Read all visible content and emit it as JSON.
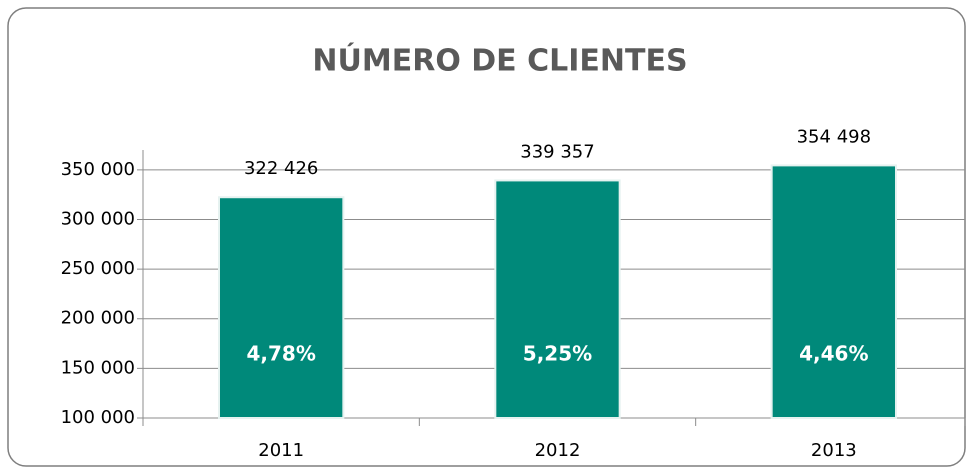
{
  "chart_data": {
    "type": "bar",
    "title": "NÚMERO DE CLIENTES",
    "categories": [
      "2011",
      "2012",
      "2013"
    ],
    "values": [
      322426,
      339357,
      354498
    ],
    "value_labels": [
      "322 426",
      "339 357",
      "354 498"
    ],
    "annotations": [
      "4,78%",
      "5,25%",
      "4,46%"
    ],
    "color": "#00897a",
    "ylim": [
      100000,
      370000
    ],
    "yticks": [
      {
        "value": 100000,
        "label": "100 000"
      },
      {
        "value": 150000,
        "label": "150 000"
      },
      {
        "value": 200000,
        "label": "200 000"
      },
      {
        "value": 250000,
        "label": "250 000"
      },
      {
        "value": 300000,
        "label": "300 000"
      },
      {
        "value": 350000,
        "label": "350 000"
      }
    ],
    "grid": true
  }
}
